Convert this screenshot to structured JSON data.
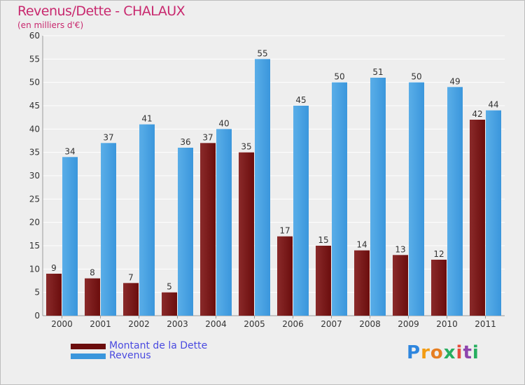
{
  "title": "Revenus/Dette - CHALAUX",
  "subtitle": "(en milliers d'€)",
  "colors": {
    "dette": "#6b0d0d",
    "dette_light": "#8a2a2a",
    "revenus": "#3a96dc",
    "revenus_light": "#5aaee8",
    "background": "#eeeeee",
    "title": "#c8286e",
    "legend_text": "#4a4ae0"
  },
  "legend": {
    "dette_label": "Montant de la Dette",
    "revenus_label": "Revenus"
  },
  "logo": {
    "text": "Proxiti"
  },
  "chart_data": {
    "type": "bar",
    "title": "Revenus/Dette - CHALAUX",
    "subtitle": "(en milliers d'€)",
    "xlabel": "",
    "ylabel": "",
    "ylim": [
      0,
      60
    ],
    "yticks": [
      0,
      5,
      10,
      15,
      20,
      25,
      30,
      35,
      40,
      45,
      50,
      55,
      60
    ],
    "grid": true,
    "legend_position": "bottom-left",
    "categories": [
      "2000",
      "2001",
      "2002",
      "2003",
      "2004",
      "2005",
      "2006",
      "2007",
      "2008",
      "2009",
      "2010",
      "2011"
    ],
    "series": [
      {
        "name": "Montant de la Dette",
        "values": [
          9,
          8,
          7,
          5,
          37,
          35,
          17,
          15,
          14,
          13,
          12,
          42
        ]
      },
      {
        "name": "Revenus",
        "values": [
          34,
          37,
          41,
          36,
          40,
          55,
          45,
          50,
          51,
          50,
          49,
          44
        ]
      }
    ]
  }
}
